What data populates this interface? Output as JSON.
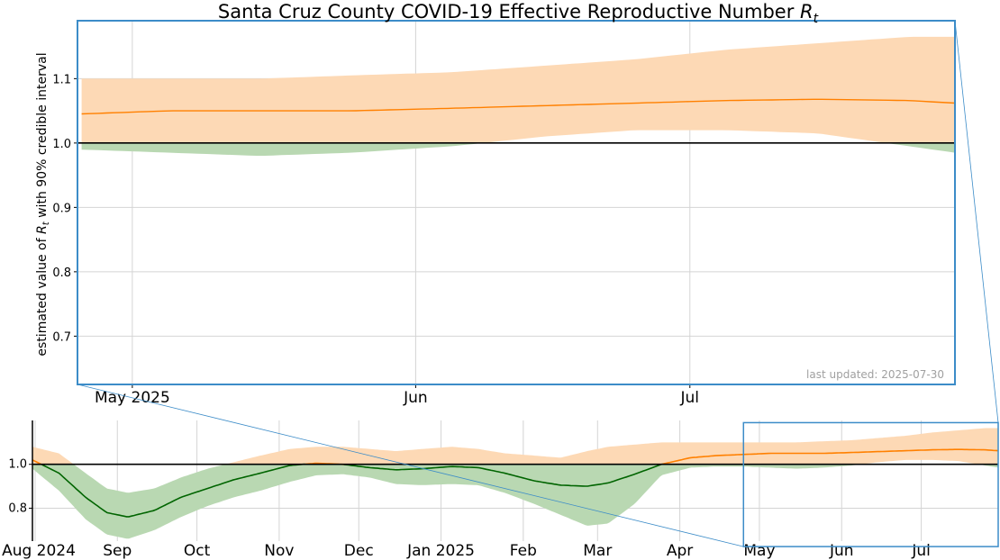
{
  "chart_data": {
    "type": "area",
    "title": "Santa Cruz County COVID-19 Effective Reproductive Number",
    "title_symbol": "R",
    "title_subscript": "t",
    "ylabel_prefix": "estimated value of",
    "ylabel_symbol": "R",
    "ylabel_subscript": "t",
    "ylabel_suffix": "with 90% credible interval",
    "annotation": "last updated: 2025-07-30",
    "reference_line": 1.0,
    "colors": {
      "above_band": "#fdd9b5",
      "above_line": "#ff8000",
      "below_band": "#b9d8b2",
      "below_line": "#006400",
      "reference": "#000000",
      "zoom_box": "#3c8cc8",
      "grid": "#d4d4d4"
    },
    "main_panel": {
      "xlim": [
        "2025-04-25",
        "2025-07-30"
      ],
      "ylim": [
        0.625,
        1.19
      ],
      "yticks": [
        0.7,
        0.8,
        0.9,
        1.0,
        1.1
      ],
      "ytick_labels": [
        "0.7",
        "0.8",
        "0.9",
        "1.0",
        "1.1"
      ],
      "xticks": [
        "2025-05-01",
        "2025-06-01",
        "2025-07-01"
      ],
      "xtick_labels": [
        "May 2025",
        "Jun",
        "Jul"
      ]
    },
    "overview_panel": {
      "xlim": [
        "2024-07-31",
        "2025-07-30"
      ],
      "ylim": [
        0.65,
        1.2
      ],
      "yticks": [
        0.8,
        1.0
      ],
      "ytick_labels": [
        "0.8",
        "1.0"
      ],
      "xticks": [
        "2024-08-01",
        "2024-09-01",
        "2024-10-01",
        "2024-11-01",
        "2024-12-01",
        "2025-01-01",
        "2025-02-01",
        "2025-03-01",
        "2025-04-01",
        "2025-05-01",
        "2025-06-01",
        "2025-07-01"
      ],
      "xtick_labels": [
        "Aug 2024",
        "Sep",
        "Oct",
        "Nov",
        "Dec",
        "Jan 2025",
        "Feb",
        "Mar",
        "Apr",
        "May",
        "Jun",
        "Jul"
      ],
      "zoom_window": {
        "x": [
          "2025-04-25",
          "2025-07-30"
        ],
        "y": [
          0.625,
          1.19
        ]
      }
    },
    "series": [
      {
        "x": [
          "2024-07-31",
          "2024-08-10",
          "2024-08-20",
          "2024-08-28",
          "2024-09-05",
          "2024-09-15",
          "2024-09-25",
          "2024-10-05",
          "2024-10-15",
          "2024-10-25",
          "2024-11-05",
          "2024-11-15",
          "2024-11-25",
          "2024-12-05",
          "2024-12-15",
          "2024-12-25",
          "2025-01-05",
          "2025-01-15",
          "2025-01-25",
          "2025-02-05",
          "2025-02-15",
          "2025-02-25",
          "2025-03-05",
          "2025-03-15",
          "2025-03-25",
          "2025-04-05",
          "2025-04-15",
          "2025-04-25",
          "2025-05-05",
          "2025-05-15",
          "2025-05-25",
          "2025-06-05",
          "2025-06-15",
          "2025-06-25",
          "2025-07-05",
          "2025-07-15",
          "2025-07-25",
          "2025-07-30"
        ],
        "median": [
          1.02,
          0.96,
          0.85,
          0.78,
          0.76,
          0.79,
          0.85,
          0.89,
          0.93,
          0.96,
          0.995,
          1.005,
          1.0,
          0.985,
          0.975,
          0.98,
          0.99,
          0.985,
          0.96,
          0.925,
          0.905,
          0.9,
          0.915,
          0.955,
          1.0,
          1.03,
          1.04,
          1.045,
          1.05,
          1.05,
          1.05,
          1.054,
          1.058,
          1.062,
          1.066,
          1.068,
          1.066,
          1.062
        ],
        "lower": [
          0.98,
          0.88,
          0.75,
          0.68,
          0.66,
          0.7,
          0.76,
          0.81,
          0.85,
          0.88,
          0.92,
          0.95,
          0.955,
          0.94,
          0.91,
          0.905,
          0.91,
          0.905,
          0.87,
          0.82,
          0.77,
          0.72,
          0.73,
          0.82,
          0.95,
          0.985,
          0.99,
          0.99,
          0.985,
          0.98,
          0.985,
          0.995,
          1.01,
          1.02,
          1.02,
          1.015,
          0.995,
          0.985
        ],
        "upper": [
          1.08,
          1.05,
          0.96,
          0.89,
          0.87,
          0.89,
          0.94,
          0.98,
          1.01,
          1.04,
          1.07,
          1.08,
          1.08,
          1.07,
          1.06,
          1.07,
          1.08,
          1.07,
          1.05,
          1.04,
          1.03,
          1.06,
          1.08,
          1.09,
          1.1,
          1.1,
          1.1,
          1.1,
          1.1,
          1.1,
          1.105,
          1.11,
          1.12,
          1.13,
          1.145,
          1.155,
          1.165,
          1.165
        ]
      }
    ]
  }
}
